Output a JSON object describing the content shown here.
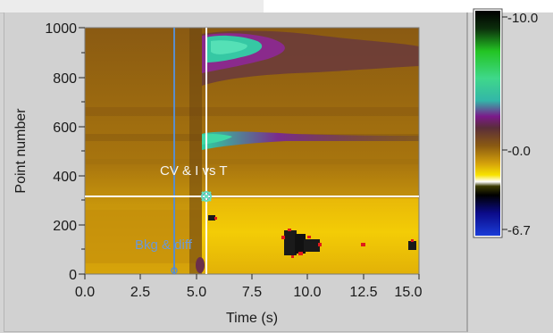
{
  "graph": {
    "y_axis_label": "Point number",
    "x_axis_label": "Time (s)",
    "y_ticks": [
      "0",
      "200",
      "400",
      "600",
      "800",
      "1000"
    ],
    "x_ticks": [
      "0.0",
      "2.5",
      "5.0",
      "7.5",
      "10.0",
      "12.5",
      "15.0"
    ],
    "cursor_cv_label": "CV & I vs T",
    "cursor_bkg_label": "Bkg & diff",
    "cursor_color_cv": "#ffffff",
    "cursor_color_bkg": "#5b8dc9"
  },
  "colorbar": {
    "max_label": "-10.0",
    "mid_label": "-0.0",
    "min_label": "-6.7"
  },
  "chart_data": {
    "type": "heatmap",
    "title": "",
    "xlabel": "Time (s)",
    "ylabel": "Point number",
    "xlim": [
      0,
      15
    ],
    "ylim": [
      0,
      1000
    ],
    "x_ticks": [
      0,
      2.5,
      5,
      7.5,
      10,
      12.5,
      15
    ],
    "y_ticks": [
      0,
      200,
      400,
      600,
      800,
      1000
    ],
    "colorbar": {
      "top": -10.0,
      "middle": -0.0,
      "bottom": -6.7
    },
    "cursors": [
      {
        "name": "CV & I vs T",
        "x": 5.4,
        "y": 315
      },
      {
        "name": "Bkg & diff",
        "x": 4.1
      }
    ]
  }
}
